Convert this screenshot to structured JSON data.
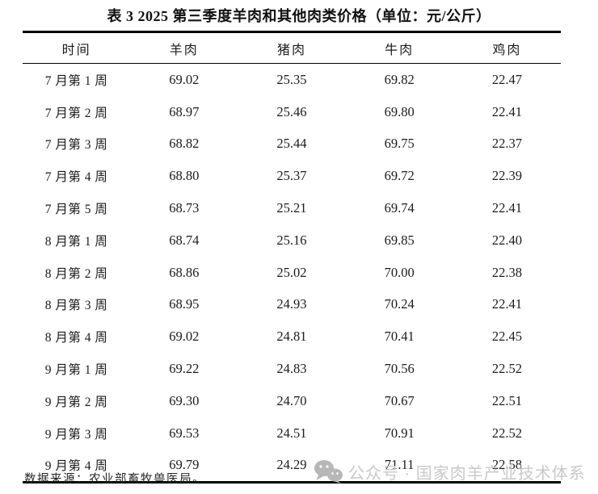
{
  "title": "表 3  2025 第三季度羊肉和其他肉类价格（单位：元/公斤）",
  "table": {
    "headers": [
      "时间",
      "羊肉",
      "猪肉",
      "牛肉",
      "鸡肉"
    ],
    "rows": [
      [
        "7 月第 1 周",
        "69.02",
        "25.35",
        "69.82",
        "22.47"
      ],
      [
        "7 月第 2 周",
        "68.97",
        "25.46",
        "69.80",
        "22.41"
      ],
      [
        "7 月第 3 周",
        "68.82",
        "25.44",
        "69.75",
        "22.37"
      ],
      [
        "7 月第 4 周",
        "68.80",
        "25.37",
        "69.72",
        "22.39"
      ],
      [
        "7 月第 5 周",
        "68.73",
        "25.21",
        "69.74",
        "22.41"
      ],
      [
        "8 月第 1 周",
        "68.74",
        "25.16",
        "69.85",
        "22.40"
      ],
      [
        "8 月第 2 周",
        "68.86",
        "25.02",
        "70.00",
        "22.38"
      ],
      [
        "8 月第 3 周",
        "68.95",
        "24.93",
        "70.24",
        "22.41"
      ],
      [
        "8 月第 4 周",
        "69.02",
        "24.81",
        "70.41",
        "22.45"
      ],
      [
        "9 月第 1 周",
        "69.22",
        "24.83",
        "70.56",
        "22.52"
      ],
      [
        "9 月第 2 周",
        "69.30",
        "24.70",
        "70.67",
        "22.51"
      ],
      [
        "9 月第 3 周",
        "69.53",
        "24.51",
        "70.91",
        "22.52"
      ],
      [
        "9 月第 4 周",
        "69.79",
        "24.29",
        "71.11",
        "22.58"
      ]
    ]
  },
  "footer": {
    "source": "数据来源：农业部畜牧兽医局。"
  },
  "watermark": {
    "text": "公众号 · 国家肉羊产业技术体系",
    "icon": "wechat-icon",
    "color": "#c8c8c8"
  },
  "colors": {
    "text": "#1b1b1b",
    "border": "#000000",
    "background": "#ffffff"
  }
}
